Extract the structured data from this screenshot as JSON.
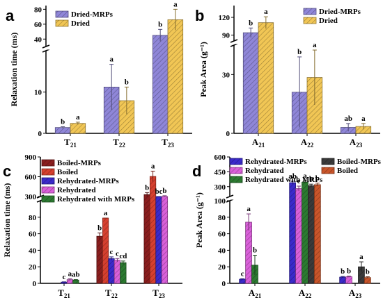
{
  "chart_data": [
    {
      "panel": "a",
      "type": "bar",
      "ylabel": "Relaxation time (ms)",
      "categories": [
        "T21",
        "T22",
        "T23"
      ],
      "axis_break": {
        "lower": [
          0,
          20
        ],
        "upper": [
          30,
          85
        ]
      },
      "y_ticks": [
        0,
        10,
        40,
        60,
        80
      ],
      "series": [
        {
          "name": "Dried-MRPs",
          "color": "#8f86d8",
          "values": [
            1.4,
            11.2,
            45
          ],
          "errors": [
            0.2,
            5.5,
            8
          ],
          "letters": [
            "b",
            "a",
            "b"
          ]
        },
        {
          "name": "Dried",
          "color": "#f1c655",
          "values": [
            2.4,
            7.9,
            66
          ],
          "errors": [
            0.3,
            3.3,
            14
          ],
          "letters": [
            "a",
            "b",
            "a"
          ]
        }
      ],
      "legend": "top-left"
    },
    {
      "panel": "b",
      "type": "bar",
      "ylabel": "Peak Area (g⁻¹)",
      "categories": [
        "A21",
        "A22",
        "A23"
      ],
      "axis_break": {
        "lower": [
          0,
          45
        ],
        "upper": [
          80,
          140
        ]
      },
      "y_ticks": [
        0,
        30,
        90,
        120
      ],
      "series": [
        {
          "name": "Dried-MRPs",
          "color": "#8f86d8",
          "values": [
            94,
            21,
            3
          ],
          "errors": [
            8,
            18,
            2
          ],
          "letters": [
            "b",
            "b",
            "ab"
          ]
        },
        {
          "name": "Dried",
          "color": "#f1c655",
          "values": [
            111,
            28.5,
            3.5
          ],
          "errors": [
            10,
            14,
            1.5
          ],
          "letters": [
            "a",
            "a",
            "a"
          ]
        }
      ],
      "legend": "top-right"
    },
    {
      "panel": "c",
      "type": "bar",
      "ylabel": "Relaxation time (ms)",
      "categories": [
        "T21",
        "T22",
        "T23"
      ],
      "axis_break": {
        "lower": [
          0,
          100
        ],
        "upper": [
          300,
          900
        ]
      },
      "y_ticks": [
        0,
        20,
        40,
        60,
        80,
        300,
        600,
        900
      ],
      "series": [
        {
          "name": "Boiled-MRPs",
          "color": "#8a1e1e",
          "values": [
            0,
            57,
            330
          ],
          "errors": [
            0,
            4,
            30
          ],
          "letters": [
            "",
            "b",
            "b"
          ]
        },
        {
          "name": "Boiled",
          "color": "#d6402f",
          "values": [
            0,
            79,
            605
          ],
          "errors": [
            0,
            0,
            80
          ],
          "letters": [
            "",
            "a",
            "a"
          ]
        },
        {
          "name": "Rehydrated-MRPs",
          "color": "#3b2acb",
          "values": [
            1.5,
            30,
            290
          ],
          "errors": [
            0.3,
            2,
            10
          ],
          "letters": [
            "c",
            "c",
            "bc"
          ]
        },
        {
          "name": "Rehydrated",
          "color": "#d960d9",
          "values": [
            4.5,
            28,
            300
          ],
          "errors": [
            1,
            2,
            12
          ],
          "letters": [
            "a",
            "c",
            "b"
          ]
        },
        {
          "name": "Rehydrated with MRPs",
          "color": "#2c7a31",
          "values": [
            4,
            25,
            0
          ],
          "errors": [
            0.5,
            2,
            0
          ],
          "letters": [
            "ab",
            "cd",
            ""
          ]
        }
      ],
      "legend": "top-left"
    },
    {
      "panel": "d",
      "type": "bar",
      "ylabel": "Peak Area (g⁻¹)",
      "categories": [
        "A21",
        "A22",
        "A23"
      ],
      "axis_break": {
        "lower": [
          0,
          100
        ],
        "upper": [
          200,
          600
        ]
      },
      "y_ticks": [
        0,
        20,
        40,
        60,
        80,
        100,
        300,
        450,
        600
      ],
      "series": [
        {
          "name": "Rehydrated-MRPs",
          "color": "#3b2acb",
          "values": [
            5,
            340,
            7.5
          ],
          "errors": [
            0.5,
            15,
            0.8
          ],
          "letters": [
            "c",
            "ab",
            "b"
          ]
        },
        {
          "name": "Rehydrated",
          "color": "#d960d9",
          "values": [
            74,
            280,
            8
          ],
          "errors": [
            10,
            25,
            0.8
          ],
          "letters": [
            "a",
            "c",
            "b"
          ]
        },
        {
          "name": "Rehydrated with MRPs",
          "color": "#2c7a31",
          "values": [
            22,
            345,
            0
          ],
          "errors": [
            12,
            12,
            0
          ],
          "letters": [
            "b",
            "a",
            ""
          ]
        },
        {
          "name": "Boiled-MRPs",
          "color": "#3a3a3a",
          "values": [
            0,
            310,
            20
          ],
          "errors": [
            0,
            15,
            6
          ],
          "letters": [
            "",
            "b",
            "a"
          ]
        },
        {
          "name": "Boiled",
          "color": "#c9552a",
          "values": [
            0,
            320,
            7
          ],
          "errors": [
            0,
            15,
            1
          ],
          "letters": [
            "",
            "b",
            "b"
          ]
        }
      ],
      "legend": "top"
    }
  ]
}
